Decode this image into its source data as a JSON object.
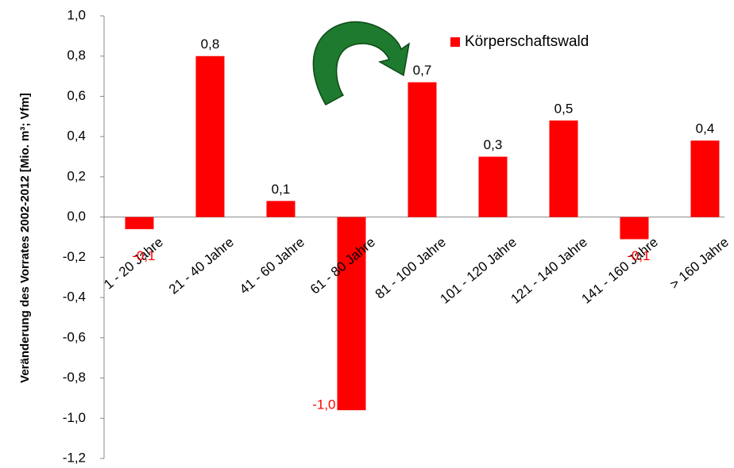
{
  "chart_data": {
    "type": "bar",
    "y_label": "Veränderung des Vorrates 2002-2012  [Mio. m³; Vfm]",
    "categories": [
      "1 - 20 Jahre",
      "21 - 40 Jahre",
      "41 - 60 Jahre",
      "61 - 80 Jahre",
      "81 - 100 Jahre",
      "101 - 120 Jahre",
      "121 - 140 Jahre",
      "141 - 160 Jahre",
      "> 160 Jahre"
    ],
    "series": [
      {
        "name": "Körperschaftswald",
        "color": "#ff0000",
        "values": [
          -0.06,
          0.8,
          0.08,
          -0.96,
          0.67,
          0.3,
          0.48,
          -0.11,
          0.38
        ],
        "value_labels": [
          "-0,1",
          "0,8",
          "0,1",
          "-1,0",
          "0,7",
          "0,3",
          "0,5",
          "-0,1",
          "0,4"
        ]
      }
    ],
    "ylim": [
      -1.2,
      1.0
    ],
    "yticks": [
      {
        "value": -1.2,
        "label": "-1,2"
      },
      {
        "value": -1.0,
        "label": "-1,0"
      },
      {
        "value": -0.8,
        "label": "-0,8"
      },
      {
        "value": -0.6,
        "label": "-0,6"
      },
      {
        "value": -0.4,
        "label": "-0,4"
      },
      {
        "value": -0.2,
        "label": "-0,2"
      },
      {
        "value": 0.0,
        "label": "0,0"
      },
      {
        "value": 0.2,
        "label": "0,2"
      },
      {
        "value": 0.4,
        "label": "0,4"
      },
      {
        "value": 0.6,
        "label": "0,6"
      },
      {
        "value": 0.8,
        "label": "0,8"
      },
      {
        "value": 1.0,
        "label": "1,0"
      }
    ],
    "legend": "top-right"
  }
}
